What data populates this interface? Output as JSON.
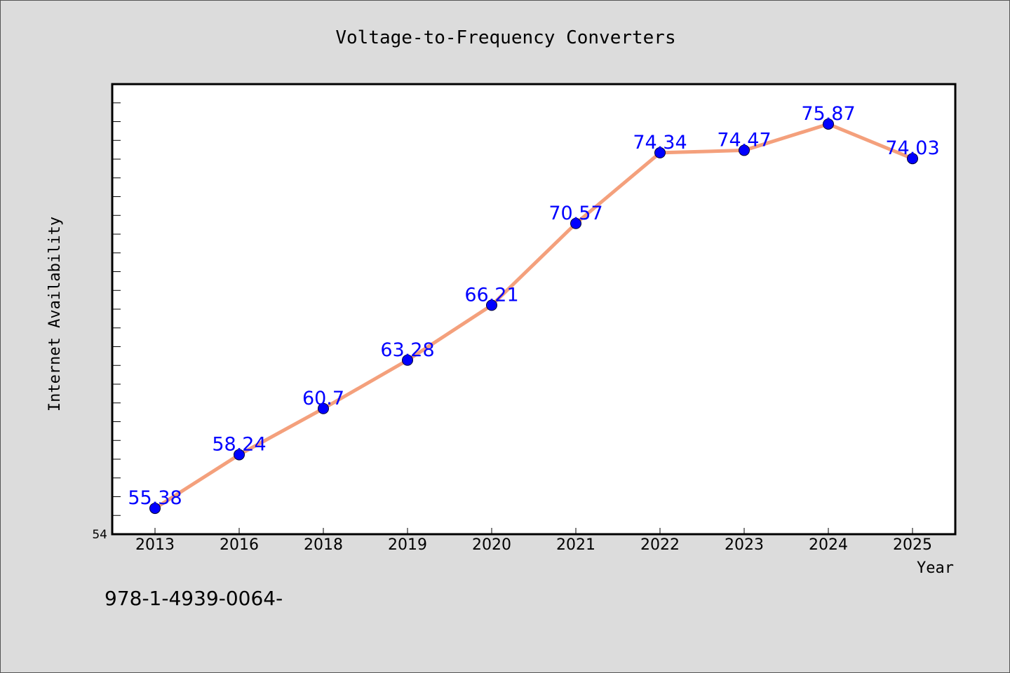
{
  "chart_data": {
    "type": "line",
    "title": "Voltage-to-Frequency Converters",
    "xlabel": "Year",
    "ylabel": "Internet Availability",
    "categories": [
      "2013",
      "2016",
      "2018",
      "2019",
      "2020",
      "2021",
      "2022",
      "2023",
      "2024",
      "2025"
    ],
    "series": [
      {
        "values": [
          55.38,
          58.24,
          60.7,
          63.28,
          66.21,
          70.57,
          74.34,
          74.47,
          75.87,
          74.03
        ],
        "data_labels": [
          "55.38",
          "58.24",
          "60.7",
          "63.28",
          "66.21",
          "70.57",
          "74.34",
          "74.47",
          "75.87",
          "74.03"
        ],
        "line_color": "#f4a07c",
        "marker_color": "#0000ff"
      }
    ],
    "ylim": [
      54,
      78
    ],
    "y_tick_labels": [
      "54"
    ],
    "y_minor_tick_step": 1,
    "grid": false,
    "legend": "none",
    "label_color": "#0000ff",
    "background": "#dcdcdc",
    "plot_background": "#ffffff"
  },
  "footer_text": "978-1-4939-0064-"
}
